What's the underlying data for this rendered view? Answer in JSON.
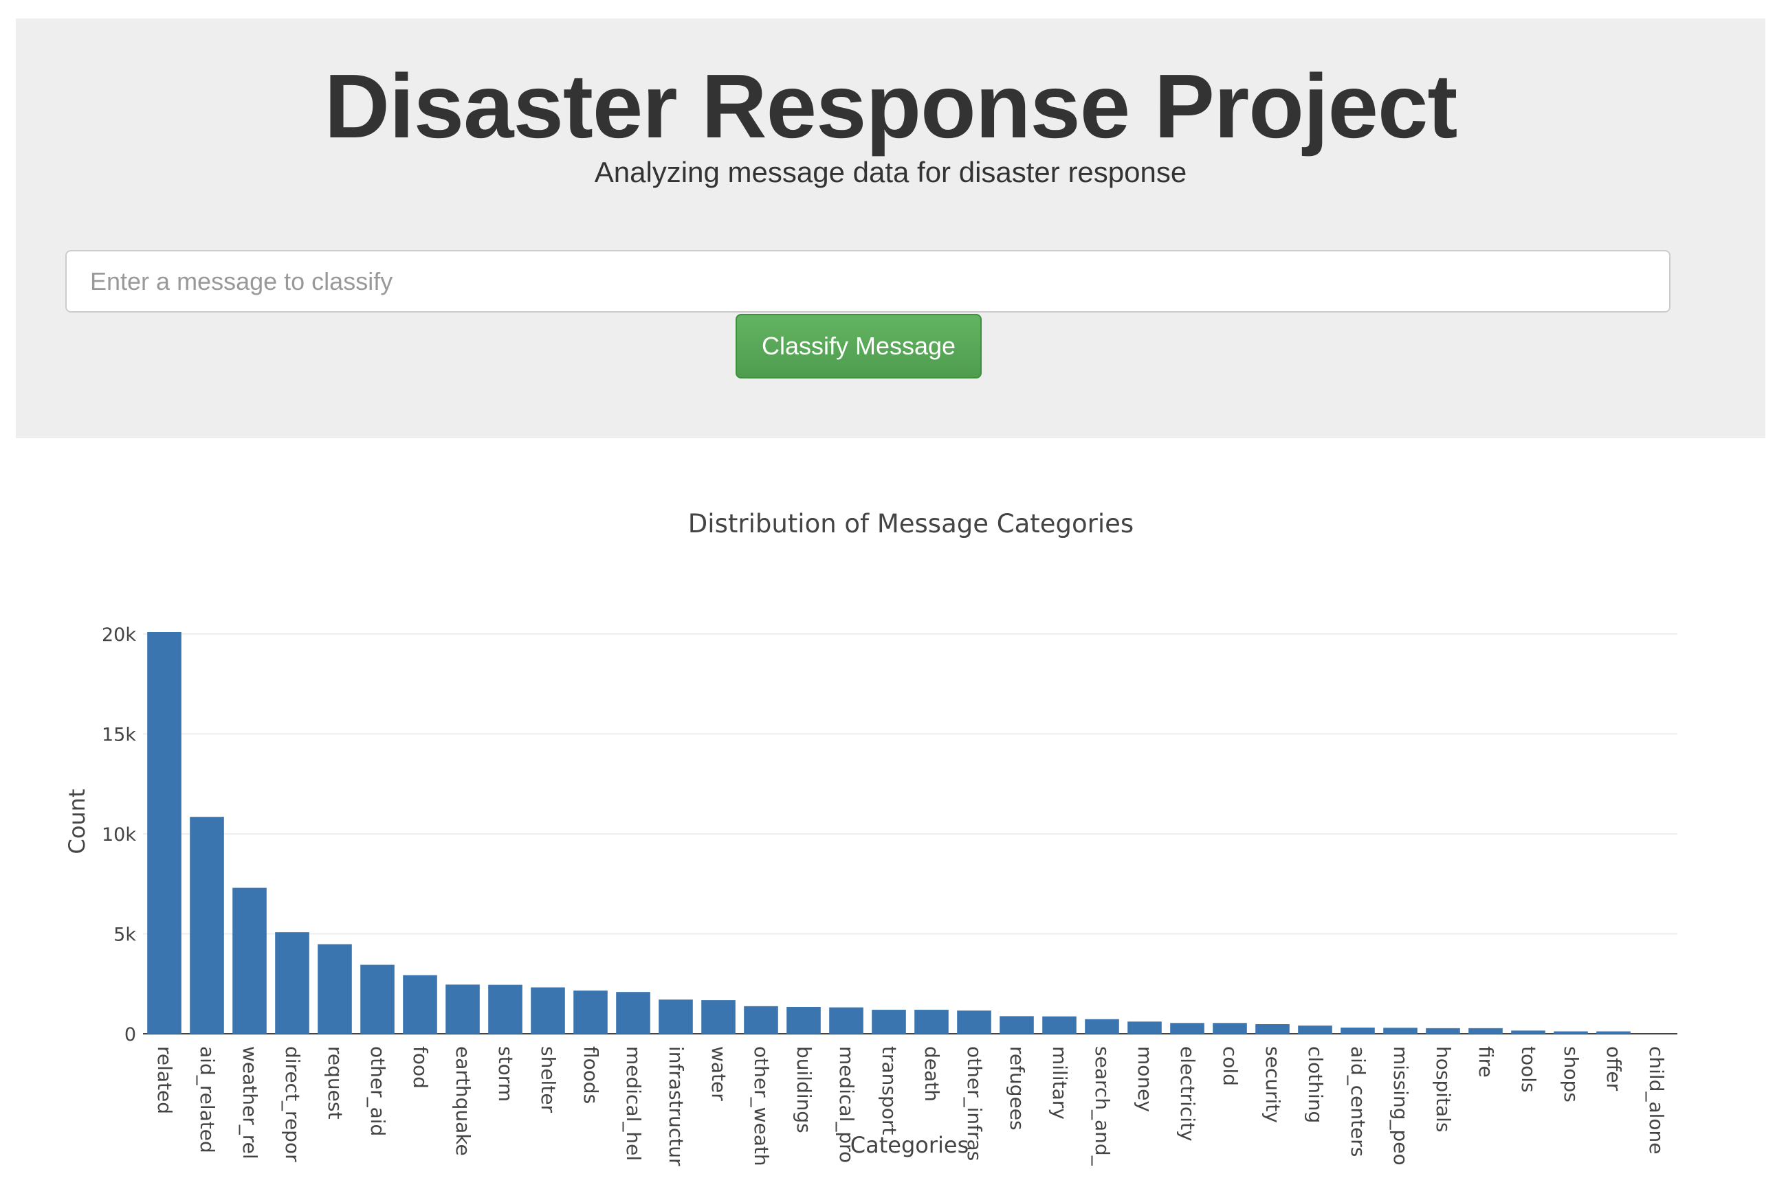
{
  "header": {
    "title": "Disaster Response Project",
    "subtitle": "Analyzing message data for disaster response"
  },
  "form": {
    "placeholder": "Enter a message to classify",
    "button_label": "Classify Message"
  },
  "colors": {
    "jumbotron_bg": "#eeeeee",
    "button_green": "#5cb85c",
    "bar_blue": "#3a75b0"
  },
  "chart_data": {
    "type": "bar",
    "title": "Distribution of Message Categories",
    "xlabel": "Categories",
    "ylabel": "Count",
    "ylim": [
      0,
      20100
    ],
    "yticks": [
      0,
      5000,
      10000,
      15000,
      20000
    ],
    "ytick_labels": [
      "0",
      "5k",
      "10k",
      "15k",
      "20k"
    ],
    "grid": true,
    "categories": [
      "related",
      "aid_related",
      "weather_rel",
      "direct_repor",
      "request",
      "other_aid",
      "food",
      "earthquake",
      "storm",
      "shelter",
      "floods",
      "medical_hel",
      "infrastructur",
      "water",
      "other_weath",
      "buildings",
      "medical_pro",
      "transport",
      "death",
      "other_infras",
      "refugees",
      "military",
      "search_and_",
      "money",
      "electricity",
      "cold",
      "security",
      "clothing",
      "aid_centers",
      "missing_peo",
      "hospitals",
      "fire",
      "tools",
      "shops",
      "offer",
      "child_alone"
    ],
    "values": [
      20100,
      10850,
      7300,
      5080,
      4480,
      3450,
      2930,
      2460,
      2450,
      2320,
      2160,
      2090,
      1710,
      1680,
      1380,
      1340,
      1320,
      1200,
      1200,
      1160,
      880,
      870,
      730,
      610,
      540,
      540,
      480,
      410,
      310,
      300,
      280,
      280,
      160,
      120,
      120,
      0
    ]
  }
}
